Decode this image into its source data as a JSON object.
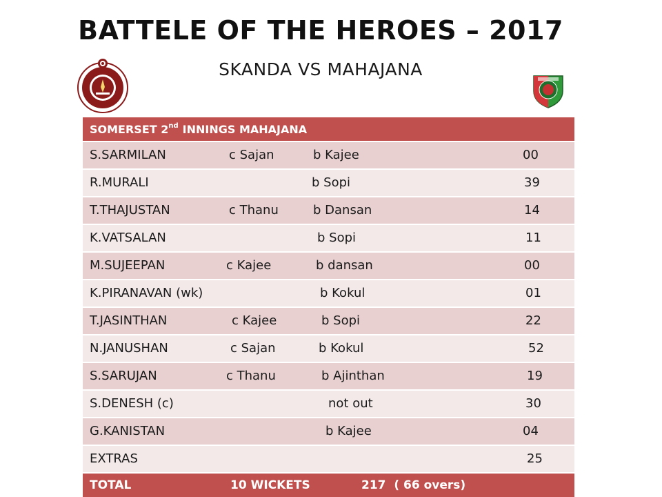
{
  "title": "BATTELE OF THE HEROES – 2017",
  "subtitle": "SKANDA VS MAHAJANA",
  "logos": {
    "left": "skanda-crest-icon",
    "right": "mahajana-shield-icon"
  },
  "colors": {
    "header": "#c0504d",
    "row_dark": "#e8d0d0",
    "row_light": "#f3e9e9"
  },
  "scorecard": {
    "header": {
      "prefix": "SOMERSET 2",
      "sup": "nd",
      "suffix": "INNINGS MAHAJANA"
    },
    "rows": [
      {
        "name": "S.SARMILAN",
        "catch": "c Sajan",
        "bowler": "b Kajee",
        "runs": "00"
      },
      {
        "name": "R.MURALI",
        "catch": "",
        "bowler": "b Sopi",
        "runs": "39"
      },
      {
        "name": "T.THAJUSTAN",
        "catch": "c Thanu",
        "bowler": "b Dansan",
        "runs": "14"
      },
      {
        "name": "K.VATSALAN",
        "catch": "",
        "bowler": "b Sopi",
        "runs": "11"
      },
      {
        "name": "M.SUJEEPAN",
        "catch": "c Kajee",
        "bowler": "b dansan",
        "runs": "00"
      },
      {
        "name": "K.PIRANAVAN (wk)",
        "catch": "",
        "bowler": "b Kokul",
        "runs": "01"
      },
      {
        "name": "T.JASINTHAN",
        "catch": "c Kajee",
        "bowler": "b Sopi",
        "runs": "22"
      },
      {
        "name": "N.JANUSHAN",
        "catch": "c Sajan",
        "bowler": "b Kokul",
        "runs": "52"
      },
      {
        "name": "S.SARUJAN",
        "catch": "c Thanu",
        "bowler": "b Ajinthan",
        "runs": "19"
      },
      {
        "name": "S.DENESH (c)",
        "catch": "",
        "bowler": "not out",
        "runs": "30"
      },
      {
        "name": "G.KANISTAN",
        "catch": "",
        "bowler": "b Kajee",
        "runs": "04"
      },
      {
        "name": "EXTRAS",
        "catch": "",
        "bowler": "",
        "runs": "25"
      }
    ],
    "total": {
      "label": "TOTAL",
      "wickets": "10 WICKETS",
      "score": "217  ( 66 overs)"
    }
  }
}
